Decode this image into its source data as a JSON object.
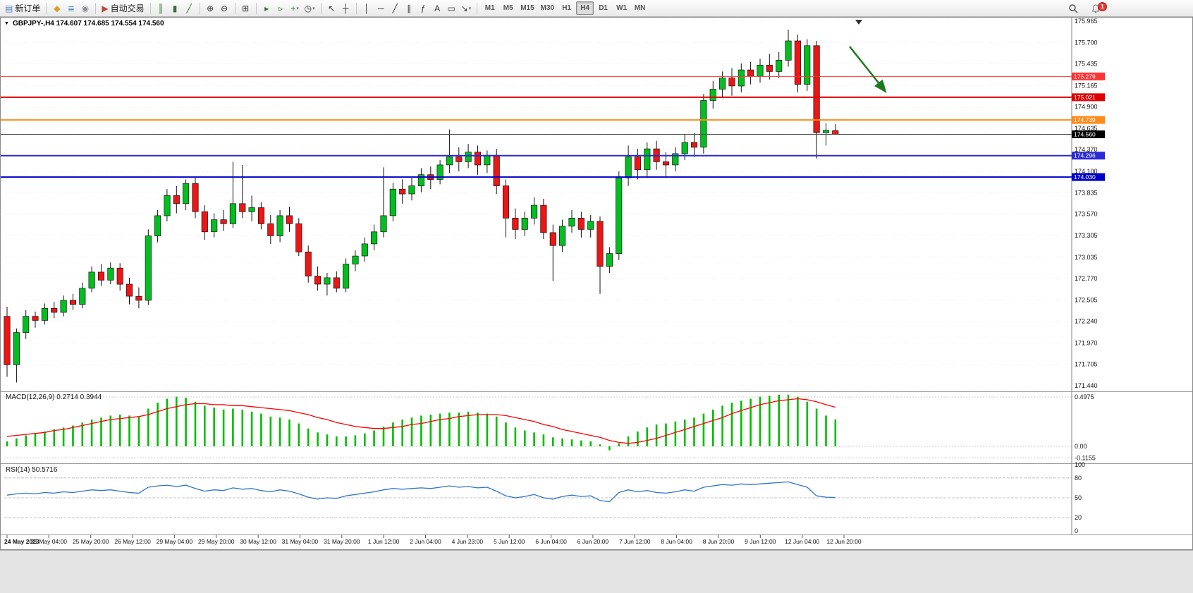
{
  "toolbar": {
    "notification_count": "1",
    "active_timeframe": "H4",
    "groups": [
      {
        "items": [
          {
            "name": "new-order-button",
            "glyph": "▤",
            "color": "#4a7ebb",
            "text": "新订单"
          }
        ]
      },
      {
        "items": [
          {
            "name": "metaeditor-button",
            "glyph": "◆",
            "color": "#d7a021"
          },
          {
            "name": "depth-of-market-button",
            "glyph": "≣",
            "color": "#5a8fd0"
          },
          {
            "name": "market-watch-button",
            "glyph": "◉",
            "color": "#8a8f94"
          }
        ]
      },
      {
        "items": [
          {
            "name": "algo-trading-button",
            "glyph": "▶",
            "color": "#b94a3d",
            "text": "自动交易"
          }
        ]
      },
      {
        "items": [
          {
            "name": "chart-bars-button",
            "glyph": "║",
            "color": "#356e35"
          },
          {
            "name": "chart-candles-button",
            "glyph": "▮",
            "color": "#356e35"
          },
          {
            "name": "chart-line-button",
            "glyph": "╱",
            "color": "#356e35"
          }
        ]
      },
      {
        "items": [
          {
            "name": "zoom-in-button",
            "glyph": "⊕",
            "color": "#333333"
          },
          {
            "name": "zoom-out-button",
            "glyph": "⊖",
            "color": "#333333"
          }
        ]
      },
      {
        "items": [
          {
            "name": "tile-windows-button",
            "glyph": "⊞",
            "color": "#333333"
          }
        ]
      },
      {
        "items": [
          {
            "name": "auto-scroll-button",
            "glyph": "▸",
            "color": "#356e35"
          },
          {
            "name": "chart-shift-button",
            "glyph": "▹",
            "color": "#356e35"
          },
          {
            "name": "indicators-dropdown",
            "glyph": "+",
            "color": "#00962d",
            "dropdown": true
          },
          {
            "name": "periods-dropdown",
            "glyph": "◷",
            "color": "#333333",
            "dropdown": true
          }
        ]
      },
      {
        "items": [
          {
            "name": "cursor-button",
            "glyph": "↖",
            "color": "#333333"
          },
          {
            "name": "crosshair-button",
            "glyph": "┼",
            "color": "#333333"
          }
        ]
      },
      {
        "items": [
          {
            "name": "vertical-line-button",
            "glyph": "│",
            "color": "#333333"
          },
          {
            "name": "horizontal-line-button",
            "glyph": "─",
            "color": "#333333"
          },
          {
            "name": "trendline-button",
            "glyph": "╱",
            "color": "#333333"
          },
          {
            "name": "channel-button",
            "glyph": "∥",
            "color": "#333333"
          },
          {
            "name": "fibonacci-button",
            "glyph": "ƒ",
            "color": "#333333"
          },
          {
            "name": "text-button",
            "glyph": "A",
            "color": "#333333"
          },
          {
            "name": "text-label-button",
            "glyph": "▭",
            "color": "#333333"
          },
          {
            "name": "arrows-dropdown",
            "glyph": "↘",
            "color": "#333333",
            "dropdown": true
          }
        ]
      },
      {
        "items": [
          {
            "name": "timeframe-M1",
            "text": "M1",
            "tf": true
          },
          {
            "name": "timeframe-M5",
            "text": "M5",
            "tf": true
          },
          {
            "name": "timeframe-M15",
            "text": "M15",
            "tf": true
          },
          {
            "name": "timeframe-M30",
            "text": "M30",
            "tf": true
          },
          {
            "name": "timeframe-H1",
            "text": "H1",
            "tf": true
          },
          {
            "name": "timeframe-H4",
            "text": "H4",
            "tf": true
          },
          {
            "name": "timeframe-D1",
            "text": "D1",
            "tf": true
          },
          {
            "name": "timeframe-W1",
            "text": "W1",
            "tf": true
          },
          {
            "name": "timeframe-MN",
            "text": "MN",
            "tf": true
          }
        ]
      }
    ]
  },
  "chart": {
    "symbol_label": "GBPJPY-,H4 174.607 174.685 174.554 174.560",
    "bull_color": "#00C020",
    "bear_color": "#EE1515",
    "price_ticks": [
      "175.965",
      "175.700",
      "175.435",
      "175.165",
      "174.900",
      "174.635",
      "174.370",
      "174.100",
      "173.835",
      "173.570",
      "173.305",
      "173.035",
      "172.770",
      "172.505",
      "172.240",
      "171.970",
      "171.705",
      "171.440"
    ],
    "levels": [
      {
        "price": 175.279,
        "label": "175.279",
        "color": "#FF3434",
        "width": 1
      },
      {
        "price": 175.021,
        "label": "175.021",
        "color": "#DF0000",
        "width": 2
      },
      {
        "price": 174.739,
        "label": "174.739",
        "color": "#FF8C1A",
        "width": 2
      },
      {
        "price": 174.296,
        "label": "174.296",
        "color": "#2A2AD6",
        "width": 2
      },
      {
        "price": 174.03,
        "label": "174.030",
        "color": "#0000CC",
        "width": 2
      }
    ],
    "current_price": {
      "price": 174.56,
      "label": "174.560",
      "line_color": "#4a4a4a",
      "badge_color": "#000000"
    },
    "arrow": {
      "color": "#1C7A1C"
    },
    "time_labels": [
      "24 May 2023",
      "25 May 04:00",
      "25 May 20:00",
      "26 May 12:00",
      "29 May 04:00",
      "29 May 20:00",
      "30 May 12:00",
      "31 May 04:00",
      "31 May 20:00",
      "1 Jun 12:00",
      "2 Jun 04:00",
      "4 Jun 23:00",
      "5 Jun 12:00",
      "6 Jun 04:00",
      "6 Jun 20:00",
      "7 Jun 12:00",
      "8 Jun 04:00",
      "8 Jun 20:00",
      "9 Jun 12:00",
      "12 Jun 04:00",
      "12 Jun 20:00"
    ]
  },
  "macd": {
    "label": "MACD(12,26,9) 0.2714 0.3944",
    "axis_max": "0.4975",
    "axis_zero": "0.00",
    "axis_min": "-0.1155"
  },
  "rsi": {
    "label": "RSI(14) 50.5716",
    "levels": [
      80,
      50,
      20
    ],
    "axis_labels": [
      100,
      80,
      50,
      20,
      0
    ]
  },
  "chart_data": [
    {
      "type": "candlestick",
      "name": "GBPJPY- H4",
      "ylim": [
        171.44,
        175.965
      ],
      "ohlc": [
        [
          172.3,
          172.42,
          171.55,
          171.7
        ],
        [
          171.7,
          172.15,
          171.48,
          172.1
        ],
        [
          172.1,
          172.38,
          172.02,
          172.3
        ],
        [
          172.3,
          172.36,
          172.16,
          172.25
        ],
        [
          172.25,
          172.46,
          172.2,
          172.4
        ],
        [
          172.4,
          172.48,
          172.28,
          172.35
        ],
        [
          172.35,
          172.56,
          172.3,
          172.5
        ],
        [
          172.5,
          172.58,
          172.38,
          172.45
        ],
        [
          172.45,
          172.72,
          172.4,
          172.65
        ],
        [
          172.65,
          172.92,
          172.6,
          172.85
        ],
        [
          172.85,
          172.95,
          172.68,
          172.75
        ],
        [
          172.75,
          172.97,
          172.7,
          172.9
        ],
        [
          172.9,
          172.96,
          172.62,
          172.7
        ],
        [
          172.7,
          172.78,
          172.45,
          172.55
        ],
        [
          172.55,
          172.66,
          172.4,
          172.5
        ],
        [
          172.5,
          173.38,
          172.44,
          173.3
        ],
        [
          173.3,
          173.62,
          173.22,
          173.55
        ],
        [
          173.55,
          173.88,
          173.48,
          173.8
        ],
        [
          173.8,
          173.92,
          173.58,
          173.7
        ],
        [
          173.7,
          174.0,
          173.62,
          173.95
        ],
        [
          173.95,
          174.02,
          173.52,
          173.6
        ],
        [
          173.6,
          173.68,
          173.25,
          173.35
        ],
        [
          173.35,
          173.58,
          173.28,
          173.5
        ],
        [
          173.5,
          173.62,
          173.36,
          173.45
        ],
        [
          173.45,
          174.22,
          173.4,
          173.7
        ],
        [
          173.7,
          174.18,
          173.52,
          173.6
        ],
        [
          173.6,
          173.8,
          173.48,
          173.65
        ],
        [
          173.65,
          173.72,
          173.38,
          173.45
        ],
        [
          173.45,
          173.56,
          173.2,
          173.3
        ],
        [
          173.3,
          173.62,
          173.22,
          173.55
        ],
        [
          173.55,
          173.66,
          173.35,
          173.45
        ],
        [
          173.45,
          173.52,
          173.05,
          173.1
        ],
        [
          173.1,
          173.18,
          172.72,
          172.8
        ],
        [
          172.8,
          172.92,
          172.62,
          172.7
        ],
        [
          172.7,
          172.84,
          172.56,
          172.78
        ],
        [
          172.78,
          172.86,
          172.6,
          172.65
        ],
        [
          172.65,
          173.02,
          172.6,
          172.95
        ],
        [
          172.95,
          173.12,
          172.86,
          173.05
        ],
        [
          173.05,
          173.28,
          172.98,
          173.2
        ],
        [
          173.2,
          173.44,
          173.12,
          173.35
        ],
        [
          173.35,
          174.15,
          173.28,
          173.55
        ],
        [
          173.55,
          173.96,
          173.48,
          173.88
        ],
        [
          173.88,
          174.0,
          173.7,
          173.82
        ],
        [
          173.82,
          174.02,
          173.74,
          173.92
        ],
        [
          173.92,
          174.14,
          173.84,
          174.06
        ],
        [
          174.06,
          174.16,
          173.88,
          174.0
        ],
        [
          174.0,
          174.24,
          173.94,
          174.18
        ],
        [
          174.18,
          174.62,
          174.08,
          174.28
        ],
        [
          174.28,
          174.4,
          174.1,
          174.22
        ],
        [
          174.22,
          174.44,
          174.14,
          174.34
        ],
        [
          174.34,
          174.42,
          174.06,
          174.18
        ],
        [
          174.18,
          174.36,
          174.08,
          174.3
        ],
        [
          174.3,
          174.38,
          173.82,
          173.92
        ],
        [
          173.92,
          174.0,
          173.28,
          173.52
        ],
        [
          173.52,
          173.64,
          173.26,
          173.38
        ],
        [
          173.38,
          173.6,
          173.3,
          173.52
        ],
        [
          173.52,
          173.78,
          173.44,
          173.68
        ],
        [
          173.68,
          173.76,
          173.26,
          173.34
        ],
        [
          173.34,
          173.44,
          172.74,
          173.18
        ],
        [
          173.18,
          173.5,
          173.1,
          173.42
        ],
        [
          173.42,
          173.62,
          173.34,
          173.52
        ],
        [
          173.52,
          173.6,
          173.28,
          173.38
        ],
        [
          173.38,
          173.56,
          173.28,
          173.48
        ],
        [
          173.48,
          173.54,
          172.58,
          172.92
        ],
        [
          172.92,
          173.16,
          172.84,
          173.08
        ],
        [
          173.08,
          174.1,
          173.0,
          174.02
        ],
        [
          174.02,
          174.42,
          173.92,
          174.28
        ],
        [
          174.28,
          174.38,
          174.0,
          174.12
        ],
        [
          174.12,
          174.46,
          174.02,
          174.38
        ],
        [
          174.38,
          174.48,
          174.12,
          174.22
        ],
        [
          174.22,
          174.34,
          174.02,
          174.18
        ],
        [
          174.18,
          174.4,
          174.1,
          174.32
        ],
        [
          174.32,
          174.56,
          174.24,
          174.46
        ],
        [
          174.46,
          174.58,
          174.28,
          174.4
        ],
        [
          174.4,
          175.06,
          174.32,
          174.98
        ],
        [
          174.98,
          175.22,
          174.88,
          175.12
        ],
        [
          175.12,
          175.34,
          175.02,
          175.26
        ],
        [
          175.26,
          175.38,
          175.04,
          175.16
        ],
        [
          175.16,
          175.44,
          175.08,
          175.36
        ],
        [
          175.36,
          175.46,
          175.18,
          175.28
        ],
        [
          175.28,
          175.5,
          175.2,
          175.42
        ],
        [
          175.42,
          175.56,
          175.24,
          175.34
        ],
        [
          175.34,
          175.58,
          175.26,
          175.48
        ],
        [
          175.48,
          175.86,
          175.4,
          175.72
        ],
        [
          175.72,
          175.8,
          175.08,
          175.18
        ],
        [
          175.18,
          175.74,
          175.1,
          175.66
        ],
        [
          175.66,
          175.72,
          174.26,
          174.58
        ],
        [
          174.58,
          174.7,
          174.42,
          174.61
        ],
        [
          174.607,
          174.685,
          174.554,
          174.56
        ]
      ]
    },
    {
      "type": "bar",
      "name": "MACD(12,26,9)",
      "ylim": [
        -0.1155,
        0.4975
      ],
      "histogram": [
        0.05,
        0.08,
        0.11,
        0.13,
        0.15,
        0.17,
        0.19,
        0.21,
        0.24,
        0.27,
        0.29,
        0.31,
        0.32,
        0.31,
        0.3,
        0.38,
        0.44,
        0.48,
        0.5,
        0.49,
        0.45,
        0.41,
        0.39,
        0.37,
        0.38,
        0.37,
        0.35,
        0.33,
        0.3,
        0.29,
        0.27,
        0.23,
        0.18,
        0.14,
        0.12,
        0.1,
        0.1,
        0.11,
        0.13,
        0.16,
        0.2,
        0.24,
        0.27,
        0.29,
        0.31,
        0.32,
        0.33,
        0.34,
        0.34,
        0.35,
        0.34,
        0.33,
        0.3,
        0.24,
        0.19,
        0.16,
        0.14,
        0.12,
        0.09,
        0.08,
        0.07,
        0.06,
        0.05,
        0.02,
        -0.04,
        0.03,
        0.1,
        0.15,
        0.19,
        0.22,
        0.23,
        0.25,
        0.27,
        0.29,
        0.33,
        0.37,
        0.41,
        0.44,
        0.46,
        0.48,
        0.5,
        0.51,
        0.52,
        0.52,
        0.5,
        0.45,
        0.38,
        0.31,
        0.2714
      ],
      "signal": [
        0.1,
        0.11,
        0.12,
        0.13,
        0.14,
        0.16,
        0.17,
        0.19,
        0.21,
        0.23,
        0.25,
        0.27,
        0.28,
        0.29,
        0.3,
        0.32,
        0.35,
        0.38,
        0.4,
        0.42,
        0.43,
        0.43,
        0.42,
        0.42,
        0.41,
        0.41,
        0.4,
        0.39,
        0.38,
        0.37,
        0.36,
        0.34,
        0.32,
        0.29,
        0.27,
        0.24,
        0.22,
        0.2,
        0.19,
        0.18,
        0.18,
        0.19,
        0.2,
        0.22,
        0.23,
        0.25,
        0.27,
        0.28,
        0.3,
        0.31,
        0.32,
        0.32,
        0.32,
        0.31,
        0.29,
        0.27,
        0.25,
        0.22,
        0.2,
        0.17,
        0.15,
        0.13,
        0.11,
        0.09,
        0.06,
        0.04,
        0.03,
        0.04,
        0.06,
        0.08,
        0.11,
        0.14,
        0.17,
        0.2,
        0.23,
        0.26,
        0.29,
        0.33,
        0.36,
        0.39,
        0.42,
        0.44,
        0.46,
        0.47,
        0.48,
        0.47,
        0.45,
        0.42,
        0.3944
      ]
    },
    {
      "type": "line",
      "name": "RSI(14)",
      "ylim": [
        0,
        100
      ],
      "values": [
        54,
        56,
        57,
        56,
        58,
        57,
        59,
        58,
        60,
        62,
        61,
        62,
        60,
        58,
        57,
        66,
        68,
        69,
        67,
        69,
        64,
        60,
        62,
        61,
        65,
        63,
        64,
        61,
        59,
        62,
        60,
        56,
        51,
        48,
        50,
        49,
        53,
        55,
        57,
        59,
        62,
        64,
        63,
        64,
        65,
        64,
        66,
        68,
        66,
        67,
        65,
        66,
        60,
        53,
        50,
        52,
        55,
        50,
        48,
        52,
        54,
        52,
        53,
        46,
        44,
        58,
        62,
        59,
        61,
        58,
        57,
        59,
        62,
        60,
        66,
        68,
        70,
        69,
        71,
        70,
        71,
        72,
        73,
        74,
        70,
        66,
        53,
        51,
        50.5716
      ]
    }
  ]
}
